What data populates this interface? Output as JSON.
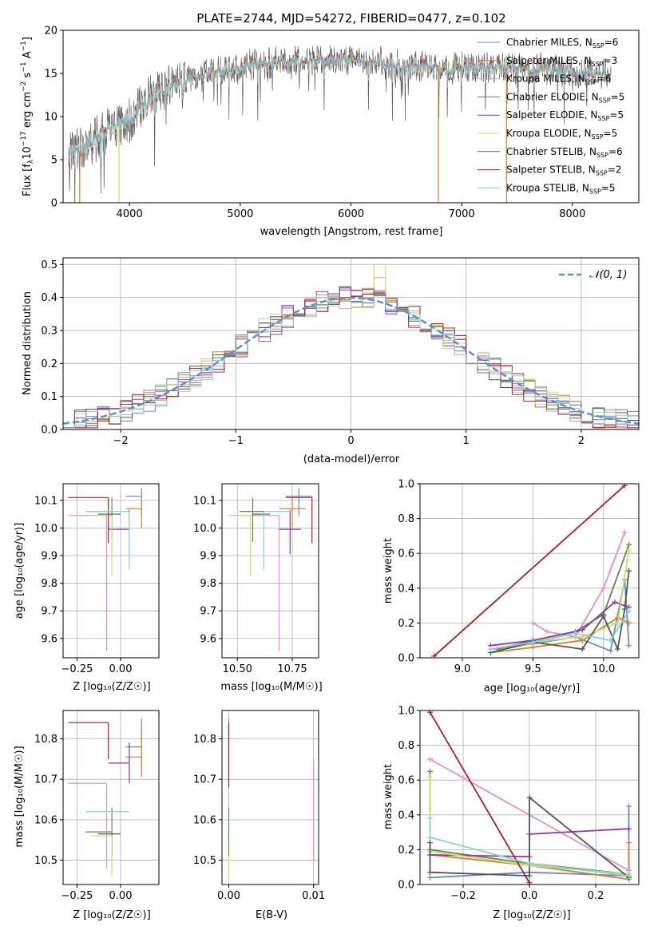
{
  "colors": {
    "Chabrier MILES": "#5a8fd6",
    "Salpeter MILES": "#e07b28",
    "Kroupa MILES": "#e58fc4",
    "Chabrier ELODIE": "#5c8a4a",
    "Salpeter ELODIE": "#9a30b0",
    "Kroupa ELODIE": "#c8e060",
    "Chabrier STELIB": "#555555",
    "Salpeter STELIB": "#b01c1c",
    "Kroupa STELIB": "#82d4dc"
  },
  "chart_data": [
    {
      "type": "line",
      "title": "PLATE=2744, MJD=54272, FIBERID=0477, z=0.102",
      "xlabel": "wavelength [Angstrom, rest frame]",
      "ylabel": "Flux [f_λ10^-17 erg cm^-2 s^-1 A^-1]",
      "xlim": [
        3400,
        8600
      ],
      "ylim": [
        0,
        20
      ],
      "xticks": [
        4000,
        5000,
        6000,
        7000,
        8000
      ],
      "yticks": [
        0,
        5,
        10,
        15,
        20
      ],
      "legend_position": "upper right",
      "series": [
        {
          "name": "Chabrier MILES, N_SSP=6"
        },
        {
          "name": "Salpeter MILES, N_SSP=3"
        },
        {
          "name": "Kroupa MILES, N_SSP=6"
        },
        {
          "name": "Chabrier ELODIE, N_SSP=5"
        },
        {
          "name": "Salpeter ELODIE, N_SSP=5"
        },
        {
          "name": "Kroupa ELODIE, N_SSP=5"
        },
        {
          "name": "Chabrier STELIB, N_SSP=6"
        },
        {
          "name": "Salpeter STELIB, N_SSP=2"
        },
        {
          "name": "Kroupa STELIB, N_SSP=5"
        }
      ],
      "continuum": {
        "x": [
          3450,
          3550,
          3700,
          3800,
          3900,
          4000,
          4100,
          4200,
          4300,
          4500,
          4700,
          4900,
          5100,
          5300,
          5500,
          5700,
          5900,
          6100,
          6300,
          6500,
          6700,
          6900,
          7100,
          7300,
          7500,
          7700,
          7900,
          8100,
          8350
        ],
        "y": [
          5.8,
          6.0,
          7.5,
          8.5,
          9.0,
          9.5,
          11.0,
          12.3,
          13.0,
          14.0,
          15.0,
          15.6,
          16.0,
          16.3,
          16.3,
          16.6,
          16.7,
          16.4,
          16.2,
          15.9,
          15.7,
          15.6,
          15.7,
          15.7,
          15.5,
          15.5,
          15.2,
          15.0,
          14.9
        ]
      }
    },
    {
      "type": "bar",
      "xlabel": "(data-model)/error",
      "ylabel": "Normed distribution",
      "xlim": [
        -2.5,
        2.5
      ],
      "ylim": [
        0,
        0.52
      ],
      "xticks": [
        -2,
        -1,
        0,
        1,
        2
      ],
      "yticks": [
        0.0,
        0.1,
        0.2,
        0.3,
        0.4,
        0.5
      ],
      "gaussian": {
        "name": "𝒩(0, 1)",
        "mu": 0,
        "sigma": 1
      },
      "legend_position": "upper right"
    },
    {
      "type": "scatter",
      "xlabel": "Z [log₁₀(Z/Z☉)]",
      "ylabel": "age  [log₁₀(age/yr)]",
      "xlim": [
        -0.33,
        0.22
      ],
      "ylim": [
        9.53,
        10.16
      ],
      "xticks": [
        -0.25,
        0.0
      ],
      "yticks": [
        9.6,
        9.7,
        9.8,
        9.9,
        10.0,
        10.1
      ],
      "points": [
        {
          "series": "Chabrier MILES",
          "x": 0.12,
          "xerr": [
            0.09,
            0.0
          ],
          "y": 10.115,
          "yerr": [
            0.07,
            0.03
          ]
        },
        {
          "series": "Salpeter MILES",
          "x": 0.12,
          "xerr": [
            0.09,
            0.0
          ],
          "y": 10.07,
          "yerr": [
            0.07,
            0.04
          ]
        },
        {
          "series": "Kroupa MILES",
          "x": -0.08,
          "xerr": [
            0.22,
            0.0
          ],
          "y": 10.045,
          "yerr": [
            0.49,
            0.0
          ]
        },
        {
          "series": "Chabrier ELODIE",
          "x": -0.05,
          "xerr": [
            0.15,
            0.0
          ],
          "y": 10.06,
          "yerr": [
            0.11,
            0.05
          ]
        },
        {
          "series": "Salpeter ELODIE",
          "x": 0.05,
          "xerr": [
            0.12,
            0.0
          ],
          "y": 9.995,
          "yerr": [
            0.09,
            0.07
          ]
        },
        {
          "series": "Kroupa ELODIE",
          "x": -0.05,
          "xerr": [
            0.12,
            0.0
          ],
          "y": 10.045,
          "yerr": [
            0.22,
            0.0
          ]
        },
        {
          "series": "Chabrier STELIB",
          "x": 0.0,
          "xerr": [
            0.13,
            0.0
          ],
          "y": 10.05,
          "yerr": [
            0.0,
            0.0
          ]
        },
        {
          "series": "Salpeter STELIB",
          "x": -0.07,
          "xerr": [
            0.23,
            0.0
          ],
          "y": 10.11,
          "yerr": [
            0.165,
            0.0
          ]
        },
        {
          "series": "Kroupa STELIB",
          "x": 0.05,
          "xerr": [
            0.25,
            0.0
          ],
          "y": 10.06,
          "yerr": [
            0.21,
            0.0
          ]
        }
      ]
    },
    {
      "type": "scatter",
      "xlabel": "mass [log₁₀(M/M☉)]",
      "ylabel": "",
      "xlim": [
        10.43,
        10.87
      ],
      "ylim": [
        9.53,
        10.16
      ],
      "xticks": [
        10.5,
        10.75
      ],
      "yticks": [
        9.6,
        9.7,
        9.8,
        9.9,
        10.0,
        10.1
      ],
      "points": [
        {
          "series": "Chabrier MILES",
          "x": 10.78,
          "xerr": [
            0.06,
            0.06
          ],
          "y": 10.115,
          "yerr": [
            0.07,
            0.03
          ]
        },
        {
          "series": "Salpeter MILES",
          "x": 10.75,
          "xerr": [
            0.06,
            0.06
          ],
          "y": 10.07,
          "yerr": [
            0.07,
            0.04
          ]
        },
        {
          "series": "Kroupa MILES",
          "x": 10.69,
          "xerr": [
            0.21,
            0.0
          ],
          "y": 10.045,
          "yerr": [
            0.49,
            0.0
          ]
        },
        {
          "series": "Chabrier ELODIE",
          "x": 10.57,
          "xerr": [
            0.06,
            0.06
          ],
          "y": 10.06,
          "yerr": [
            0.11,
            0.05
          ]
        },
        {
          "series": "Salpeter ELODIE",
          "x": 10.74,
          "xerr": [
            0.05,
            0.05
          ],
          "y": 9.995,
          "yerr": [
            0.09,
            0.07
          ]
        },
        {
          "series": "Kroupa ELODIE",
          "x": 10.56,
          "xerr": [
            0.1,
            0.0
          ],
          "y": 10.045,
          "yerr": [
            0.22,
            0.0
          ]
        },
        {
          "series": "Chabrier STELIB",
          "x": 10.57,
          "xerr": [
            0.0,
            0.08
          ],
          "y": 10.05,
          "yerr": [
            0.0,
            0.0
          ]
        },
        {
          "series": "Salpeter STELIB",
          "x": 10.84,
          "xerr": [
            0.12,
            0.0
          ],
          "y": 10.11,
          "yerr": [
            0.165,
            0.0
          ]
        },
        {
          "series": "Kroupa STELIB",
          "x": 10.62,
          "xerr": [
            0.0,
            0.12
          ],
          "y": 10.06,
          "yerr": [
            0.21,
            0.0
          ]
        }
      ]
    },
    {
      "type": "line",
      "xlabel": "age  [log₁₀(age/yr)]",
      "ylabel": "mass weight",
      "xlim": [
        8.7,
        10.25
      ],
      "ylim": [
        0,
        1.0
      ],
      "xticks": [
        9.0,
        9.5,
        10.0
      ],
      "yticks": [
        0.0,
        0.2,
        0.4,
        0.6,
        0.8,
        1.0
      ],
      "series": [
        {
          "series": "Chabrier MILES",
          "x": [
            9.2,
            9.5,
            9.8,
            10.05,
            10.15,
            10.18
          ],
          "y": [
            0.05,
            0.08,
            0.12,
            0.04,
            0.45,
            0.07
          ]
        },
        {
          "series": "Salpeter MILES",
          "x": [
            9.2,
            9.5,
            9.85,
            10.1,
            10.18
          ],
          "y": [
            0.03,
            0.06,
            0.1,
            0.23,
            0.2
          ]
        },
        {
          "series": "Kroupa MILES",
          "x": [
            9.5,
            9.6,
            9.8,
            10.0,
            10.15
          ],
          "y": [
            0.2,
            0.15,
            0.12,
            0.4,
            0.72
          ]
        },
        {
          "series": "Chabrier ELODIE",
          "x": [
            9.25,
            9.5,
            9.8,
            10.0,
            10.18
          ],
          "y": [
            0.05,
            0.1,
            0.15,
            0.25,
            0.65
          ]
        },
        {
          "series": "Salpeter ELODIE",
          "x": [
            9.2,
            9.5,
            9.85,
            10.08,
            10.18
          ],
          "y": [
            0.07,
            0.1,
            0.16,
            0.32,
            0.29
          ]
        },
        {
          "series": "Kroupa ELODIE",
          "x": [
            9.3,
            9.6,
            9.85,
            10.1,
            10.18
          ],
          "y": [
            0.05,
            0.1,
            0.12,
            0.2,
            0.62
          ]
        },
        {
          "series": "Chabrier STELIB",
          "x": [
            9.2,
            9.5,
            9.85,
            10.0,
            10.1,
            10.15,
            10.18
          ],
          "y": [
            0.03,
            0.09,
            0.05,
            0.24,
            0.05,
            0.28,
            0.5
          ]
        },
        {
          "series": "Salpeter STELIB",
          "x": [
            8.8,
            10.15
          ],
          "y": [
            0.01,
            0.99
          ]
        },
        {
          "series": "Kroupa STELIB",
          "x": [
            9.2,
            9.5,
            9.8,
            10.05,
            10.18
          ],
          "y": [
            0.05,
            0.09,
            0.14,
            0.1,
            0.27
          ]
        }
      ]
    },
    {
      "type": "scatter",
      "xlabel": "Z [log₁₀(Z/Z☉)]",
      "ylabel": "mass [log₁₀(M/M☉)]",
      "xlim": [
        -0.33,
        0.22
      ],
      "ylim": [
        10.44,
        10.87
      ],
      "xticks": [
        -0.25,
        0.0
      ],
      "yticks": [
        10.5,
        10.6,
        10.7,
        10.8
      ],
      "points": [
        {
          "series": "Chabrier MILES",
          "x": 0.12,
          "xerr": [
            0.09,
            0.0
          ],
          "y": 10.78,
          "yerr": [
            0.06,
            0.07
          ]
        },
        {
          "series": "Salpeter MILES",
          "x": 0.12,
          "xerr": [
            0.09,
            0.0
          ],
          "y": 10.755,
          "yerr": [
            0.05,
            0.07
          ]
        },
        {
          "series": "Kroupa MILES",
          "x": -0.08,
          "xerr": [
            0.22,
            0.0
          ],
          "y": 10.69,
          "yerr": [
            0.21,
            0.0
          ]
        },
        {
          "series": "Chabrier ELODIE",
          "x": -0.05,
          "xerr": [
            0.15,
            0.0
          ],
          "y": 10.57,
          "yerr": [
            0.06,
            0.06
          ]
        },
        {
          "series": "Salpeter ELODIE",
          "x": 0.05,
          "xerr": [
            0.12,
            0.0
          ],
          "y": 10.74,
          "yerr": [
            0.05,
            0.05
          ]
        },
        {
          "series": "Kroupa ELODIE",
          "x": -0.05,
          "xerr": [
            0.12,
            0.0
          ],
          "y": 10.56,
          "yerr": [
            0.1,
            0.0
          ]
        },
        {
          "series": "Chabrier STELIB",
          "x": 0.0,
          "xerr": [
            0.13,
            0.0
          ],
          "y": 10.565,
          "yerr": [
            0.0,
            0.0
          ]
        },
        {
          "series": "Salpeter STELIB",
          "x": -0.07,
          "xerr": [
            0.23,
            0.0
          ],
          "y": 10.84,
          "yerr": [
            0.09,
            0.0
          ]
        },
        {
          "series": "Kroupa STELIB",
          "x": 0.05,
          "xerr": [
            0.25,
            0.0
          ],
          "y": 10.62,
          "yerr": [
            0.0,
            0.0
          ]
        }
      ]
    },
    {
      "type": "scatter",
      "xlabel": "E(B-V)",
      "ylabel": "",
      "xlim": [
        -0.0008,
        0.0106
      ],
      "ylim": [
        10.44,
        10.87
      ],
      "xticks": [
        0.0,
        0.01
      ],
      "yticks": [
        10.5,
        10.6,
        10.7,
        10.8
      ],
      "points": [
        {
          "series": "Chabrier MILES",
          "x": 0.0,
          "y": 10.78,
          "yerr": [
            0.06,
            0.07
          ]
        },
        {
          "series": "Salpeter STELIB",
          "x": 0.0,
          "y": 10.8,
          "yerr": [
            0.12,
            0.04
          ]
        },
        {
          "series": "Kroupa ELODIE",
          "x": 0.0,
          "y": 10.56,
          "yerr": [
            0.1,
            0.0
          ]
        },
        {
          "series": "Chabrier ELODIE",
          "x": 0.0,
          "y": 10.57,
          "yerr": [
            0.06,
            0.06
          ]
        },
        {
          "series": "Kroupa MILES",
          "x": 0.01,
          "y": 10.62,
          "yerr": [
            0.12,
            0.13
          ]
        }
      ]
    },
    {
      "type": "line",
      "xlabel": "Z [log₁₀(Z/Z☉)]",
      "ylabel": "mass weight",
      "xlim": [
        -0.33,
        0.33
      ],
      "ylim": [
        0,
        1.0
      ],
      "xticks": [
        -0.2,
        0.0,
        0.2
      ],
      "yticks": [
        0.0,
        0.2,
        0.4,
        0.6,
        0.8,
        1.0
      ],
      "series": [
        {
          "series": "Chabrier MILES",
          "x": [
            -0.3,
            0.0,
            0.3,
            0.3
          ],
          "y": [
            0.04,
            0.07,
            0.05,
            0.45
          ]
        },
        {
          "series": "Salpeter MILES",
          "x": [
            -0.3,
            0.0,
            0.3,
            0.3
          ],
          "y": [
            0.17,
            0.11,
            0.03,
            0.24
          ]
        },
        {
          "series": "Kroupa MILES",
          "x": [
            -0.3,
            0.3
          ],
          "y": [
            0.72,
            0.08
          ]
        },
        {
          "series": "Chabrier ELODIE",
          "x": [
            -0.3,
            -0.3,
            0.0,
            0.3
          ],
          "y": [
            0.65,
            0.2,
            0.12,
            0.06
          ]
        },
        {
          "series": "Salpeter ELODIE",
          "x": [
            -0.3,
            0.0,
            0.0,
            0.3
          ],
          "y": [
            0.17,
            0.16,
            0.29,
            0.32
          ]
        },
        {
          "series": "Kroupa ELODIE",
          "x": [
            -0.3,
            -0.3,
            0.0,
            0.3
          ],
          "y": [
            0.62,
            0.19,
            0.11,
            0.06
          ]
        },
        {
          "series": "Chabrier STELIB",
          "x": [
            -0.3,
            -0.3,
            0.0,
            0.0,
            0.3
          ],
          "y": [
            0.24,
            0.07,
            0.05,
            0.5,
            0.04
          ]
        },
        {
          "series": "Salpeter STELIB",
          "x": [
            -0.3,
            0.0
          ],
          "y": [
            0.99,
            0.01
          ]
        },
        {
          "series": "Kroupa STELIB",
          "x": [
            -0.3,
            -0.3,
            0.0,
            0.3
          ],
          "y": [
            0.38,
            0.27,
            0.12,
            0.05
          ]
        }
      ]
    }
  ]
}
